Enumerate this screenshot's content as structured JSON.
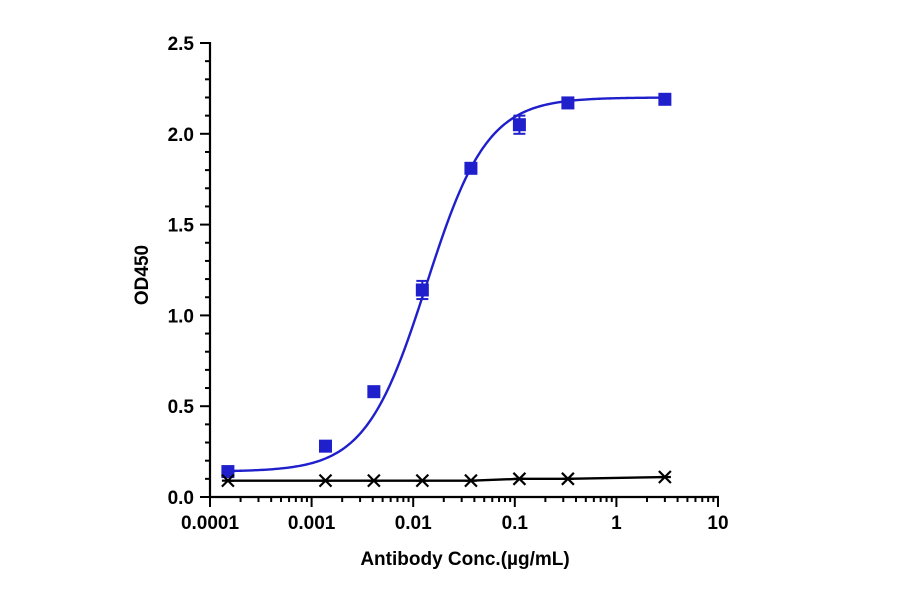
{
  "chart_data": {
    "type": "scatter",
    "xlabel": "Antibody Conc.(µg/mL)",
    "ylabel": "OD450",
    "xscale": "log",
    "xlim": [
      0.0001,
      10
    ],
    "ylim": [
      0,
      2.5
    ],
    "x_tick_labels": [
      "0.0001",
      "0.001",
      "0.01",
      "0.1",
      "1",
      "10"
    ],
    "y_tick_labels": [
      "0.0",
      "0.5",
      "1.0",
      "1.5",
      "2.0",
      "2.5"
    ],
    "grid": false,
    "legend": "none",
    "series": [
      {
        "marker": "square",
        "color": "#1f1fcc",
        "fit": "sigmoidal curve",
        "x": [
          0.00015,
          0.00137,
          0.0041,
          0.0123,
          0.037,
          0.111,
          0.333,
          3.0
        ],
        "y": [
          0.14,
          0.28,
          0.58,
          1.14,
          1.81,
          2.05,
          2.17,
          2.19
        ],
        "error": [
          0.01,
          0.01,
          0.01,
          0.05,
          0.01,
          0.05,
          0.01,
          0.01
        ]
      },
      {
        "marker": "asterisk",
        "color": "#000000",
        "fit": "line",
        "x": [
          0.00015,
          0.00137,
          0.0041,
          0.0123,
          0.037,
          0.111,
          0.333,
          3.0
        ],
        "y": [
          0.09,
          0.09,
          0.09,
          0.09,
          0.09,
          0.1,
          0.1,
          0.11
        ]
      }
    ]
  }
}
